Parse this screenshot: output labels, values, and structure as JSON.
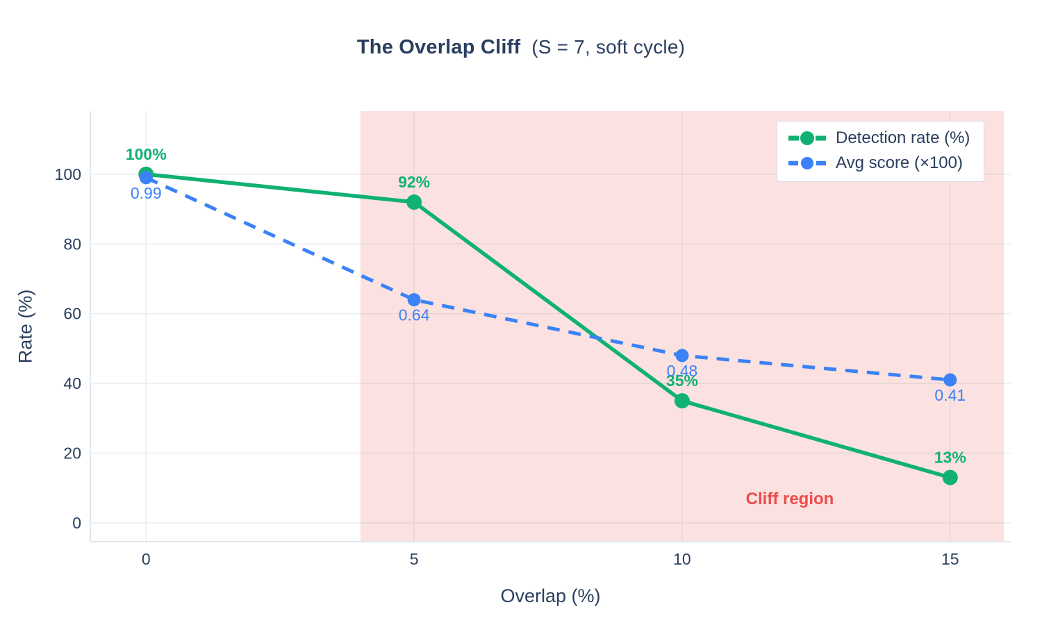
{
  "title": {
    "bold": "The Overlap Cliff",
    "rest": "  (S = 7, soft cycle)"
  },
  "colors": {
    "text": "#2a3f5f",
    "grid": "#e9eef5",
    "axis_line": "#dfe6ee",
    "background": "#ffffff",
    "green": "#10b173",
    "blue": "#3b82f6",
    "region_fill": "rgba(231,76,60,0.16)",
    "region_label": "#ee4b4b",
    "legend_border": "#d7dce4"
  },
  "chart_data": {
    "type": "line",
    "title": "The Overlap Cliff (S = 7, soft cycle)",
    "xlabel": "Overlap (%)",
    "ylabel": "Rate (%)",
    "x": [
      0,
      5,
      10,
      15
    ],
    "x_ticks": [
      0,
      5,
      10,
      15
    ],
    "y_ticks": [
      0,
      20,
      40,
      60,
      80,
      100
    ],
    "xlim": [
      -1.04,
      16.13
    ],
    "ylim": [
      -5.4,
      118.1
    ],
    "grid": true,
    "legend_position": "top-right",
    "series": [
      {
        "name": "Detection rate (%)",
        "values": [
          100,
          92,
          35,
          13
        ],
        "color": "#10b173",
        "dash": "solid",
        "marker_radius": 11,
        "line_width": 5.5,
        "labels": [
          "100%",
          "92%",
          "35%",
          "13%"
        ],
        "label_side": "above",
        "label_bold": true
      },
      {
        "name": "Avg score (×100)",
        "values": [
          99,
          64,
          48,
          41
        ],
        "color": "#3b82f6",
        "dash": "dashed",
        "marker_radius": 9.5,
        "line_width": 5,
        "labels": [
          "0.99",
          "0.64",
          "0.48",
          "0.41"
        ],
        "label_side": "below",
        "label_bold": false
      }
    ],
    "shaded_region": {
      "x0": 4,
      "x1": 16,
      "label": "Cliff region",
      "fill": "rgba(231,76,60,0.16)",
      "label_color": "#ee4b4b"
    }
  }
}
